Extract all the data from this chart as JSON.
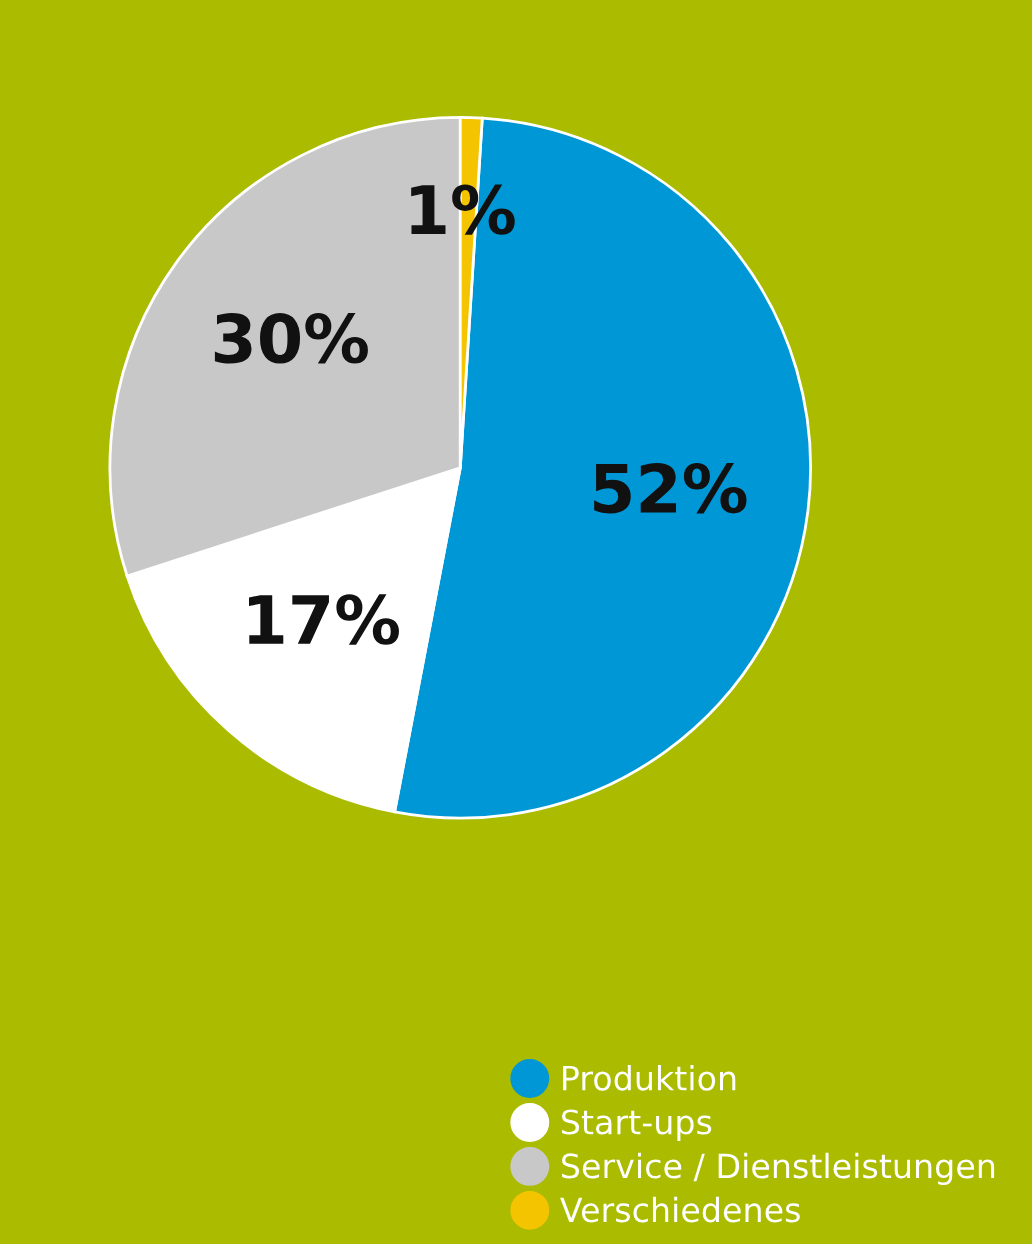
{
  "chart_data": {
    "type": "pie",
    "categories": [
      "Produktion",
      "Start-ups",
      "Service / Dienstleistungen",
      "Verschiedenes"
    ],
    "values": [
      52,
      17,
      30,
      1
    ],
    "colors": [
      "#0097d6",
      "#ffffff",
      "#c8c8c8",
      "#f5c400"
    ],
    "value_labels": [
      "52%",
      "17%",
      "30%",
      "1%"
    ],
    "legend": "bottom"
  }
}
